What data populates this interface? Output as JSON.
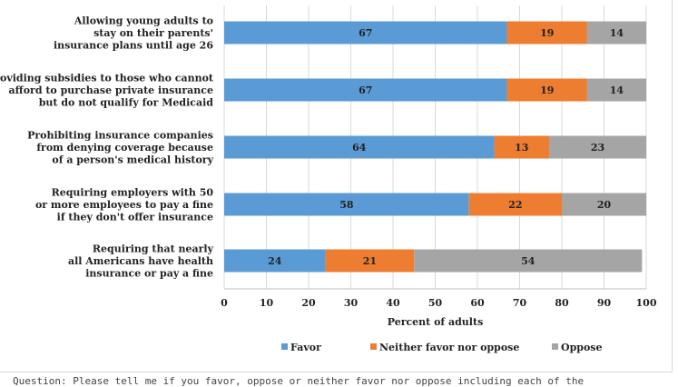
{
  "chart_data": {
    "type": "bar",
    "orientation": "horizontal",
    "stacked": true,
    "categories": [
      [
        "Allowing young adults to",
        "stay on their parents'",
        "insurance plans until age 26"
      ],
      [
        "Providing subsidies to those who cannot",
        "afford to purchase private insurance",
        "but do not qualify for Medicaid"
      ],
      [
        "Prohibiting insurance companies",
        "from denying coverage because",
        "of a person's medical history"
      ],
      [
        "Requiring employers with 50",
        "or more employees to pay a fine",
        "if they don't offer insurance"
      ],
      [
        "Requiring that nearly",
        "all Americans have health",
        "insurance or pay a fine"
      ]
    ],
    "series": [
      {
        "name": "Favor",
        "color": "#5b9bd5",
        "values": [
          67,
          67,
          64,
          58,
          24
        ]
      },
      {
        "name": "Neither favor nor oppose",
        "color": "#ed7d31",
        "values": [
          19,
          19,
          13,
          22,
          21
        ]
      },
      {
        "name": "Oppose",
        "color": "#a5a5a5",
        "values": [
          14,
          14,
          23,
          20,
          54
        ]
      }
    ],
    "xlabel": "Percent of adults",
    "xlim": [
      0,
      100
    ],
    "xticks": [
      "0",
      "10",
      "20",
      "30",
      "40",
      "50",
      "60",
      "70",
      "80",
      "90",
      "100"
    ],
    "grid": "vertical",
    "legend": "bottom"
  },
  "footnote": "Question: Please tell me if you favor, oppose or neither favor nor oppose including each of the"
}
